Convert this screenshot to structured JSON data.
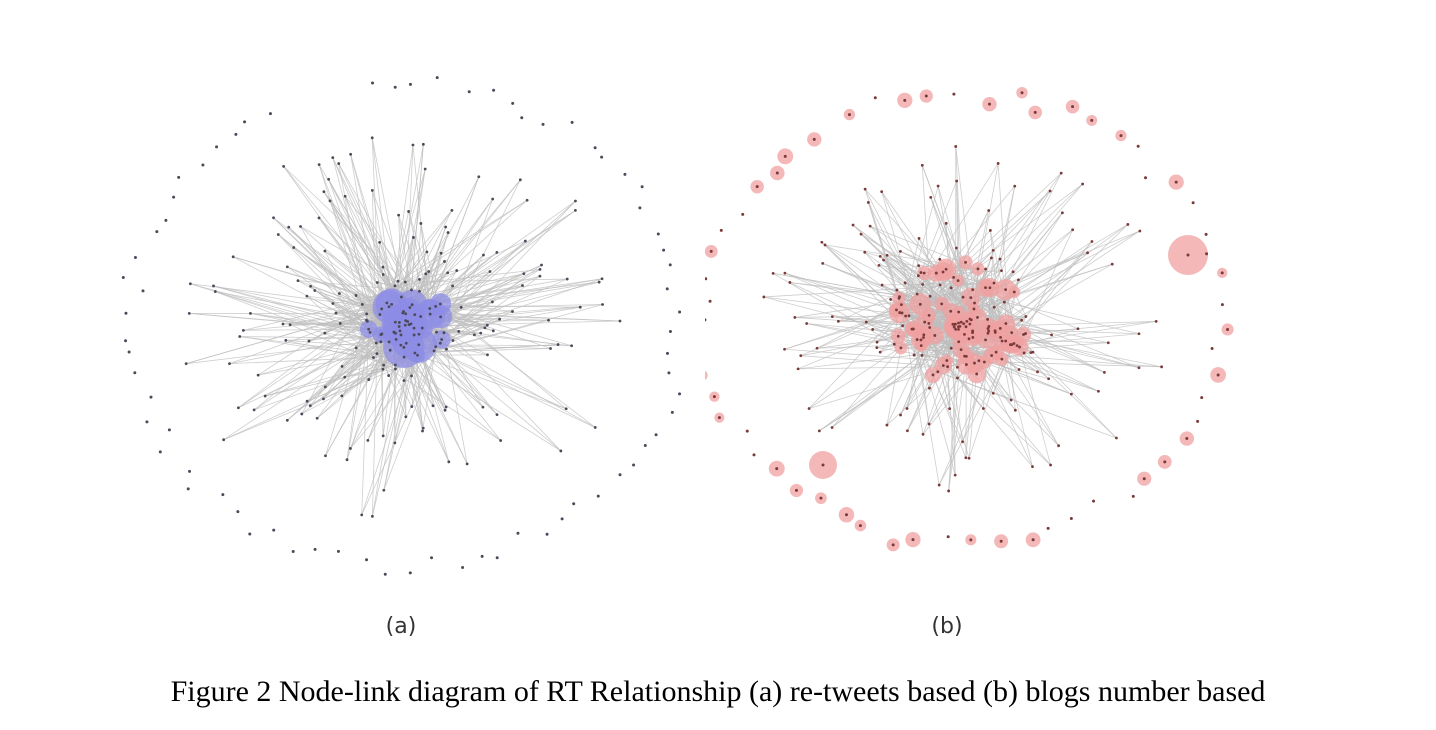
{
  "figure": {
    "caption": "Figure 2 Node-link diagram of RT Relationship (a) re-tweets based (b) blogs number based",
    "panels": [
      {
        "label": "(a)",
        "node_color": "#8c8ce6",
        "dot_color": "#4a4a5a",
        "edge_color": "#bdbdbd"
      },
      {
        "label": "(b)",
        "node_color": "#f0a0a0",
        "dot_color": "#7a3a3a",
        "edge_color": "#bdbdbd"
      }
    ]
  }
}
